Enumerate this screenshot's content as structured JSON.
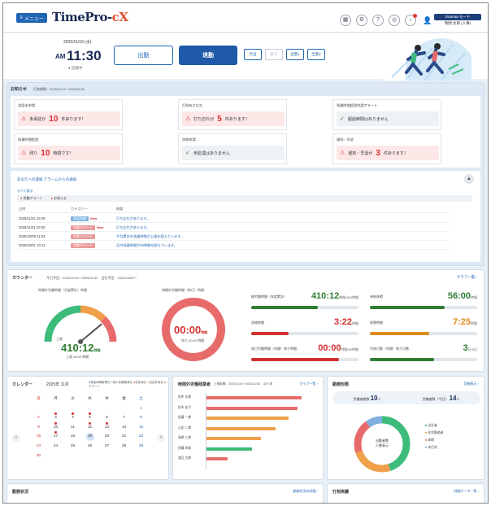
{
  "colors": {
    "primary": "#1e5aa8",
    "alert": "#d32f2f",
    "success": "#2e7d32",
    "orange": "#f0a04b",
    "green_bar": "#3dbb7a"
  },
  "header": {
    "menu_label": "メニュー",
    "logo_main": "TimePro-",
    "logo_accent": "cX",
    "icons": [
      "calendar-icon",
      "settings-icon",
      "help-icon",
      "globe-icon",
      "bell-icon"
    ],
    "user_mode": "Dramaa モード",
    "user_name": "時間 太郎 (人事)"
  },
  "clock": {
    "date": "2025/11/19 (水)",
    "ampm": "AM",
    "time": "11:30",
    "record": "記録中",
    "clock_in": "出勤",
    "clock_out": "退勤",
    "small_buttons": [
      {
        "label": "外出",
        "enabled": true
      },
      {
        "label": "戻り",
        "enabled": false
      },
      {
        "label": "出張1",
        "enabled": true
      },
      {
        "label": "出張2",
        "enabled": true
      }
    ]
  },
  "notices": {
    "title": "お知らせ",
    "period": "打刻期間：2025/11/11〜2025/11/20",
    "cards": [
      {
        "label": "承認未申請",
        "prefix": "未承認が",
        "count": "10",
        "suffix": "件あります！",
        "alert": true
      },
      {
        "label": "打刻ぬけ忘れ",
        "prefix": "打ち忘れが",
        "count": "5",
        "suffix": "件あります！",
        "alert": true
      },
      {
        "label": "残業時間超過申請アラート",
        "prefix": "",
        "count": "",
        "suffix": "超過時間はありません",
        "alert": false
      },
      {
        "label": "残業時間超過",
        "prefix": "残り",
        "count": "10",
        "suffix": "時間です！",
        "alert": true
      },
      {
        "label": "休暇申請",
        "prefix": "",
        "count": "",
        "suffix": "未処理はありません",
        "alert": false
      },
      {
        "label": "遅刻・早退",
        "prefix": "遅刻・早退が",
        "count": "3",
        "suffix": "件あります！",
        "alert": true
      }
    ],
    "sub_title": "あなたへの連絡 アラームからの通知",
    "sub_filter": "すべて表示",
    "chips": [
      "労働アラート",
      "お知らせ"
    ],
    "columns": [
      "日時",
      "カテゴリー",
      "概要"
    ],
    "rows": [
      {
        "date": "2025/11/01 10:20",
        "category": "承認依頼",
        "color": "blue",
        "new": true,
        "summary": "打ち忘れがあります。"
      },
      {
        "date": "2025/11/01 10:00",
        "category": "労務アラート",
        "color": "red",
        "new": true,
        "summary": "打ち忘れがあります。"
      },
      {
        "date": "2025/10/09 11:03",
        "category": "労務アラート",
        "color": "red",
        "new": false,
        "summary": "今月累計の残業時間が上限を超えています。"
      },
      {
        "date": "2025/10/01 10:13",
        "category": "労務アラート",
        "color": "red",
        "new": false,
        "summary": "月の残業時間が45時間を超えています。"
      }
    ]
  },
  "counter": {
    "title": "カウンター",
    "subtitle": "今日予定：2025/11/01〜2025/11/30　会社予定：2025/10/26〜",
    "link": "グラフ一覧 ›",
    "gauge": {
      "title": "時間外労働時間（月度累計）時間",
      "value": "410:12",
      "unit": "時間",
      "caption": "上限 45:00 時間",
      "fraction": 0.78
    },
    "ring": {
      "title": "時間外労働時間（休日）時間",
      "value": "00:00",
      "unit": "時間",
      "caption": "残り 60:00 時間",
      "fraction": 1.0
    },
    "metrics": [
      {
        "label": "総労働時間（年度累計）",
        "value": "410:12",
        "unit": "時間/360時間",
        "color": "#2e7d32",
        "fill": 0.62
      },
      {
        "label": "有給休暇",
        "value": "56:00",
        "unit": "時間",
        "color": "#2e7d32",
        "fill": 0.7
      },
      {
        "label": "深夜時間",
        "value": "3:22",
        "unit": "時間",
        "color": "#d32f2f",
        "fill": 0.35
      },
      {
        "label": "振替時間",
        "value": "7:25",
        "unit": "時間",
        "color": "#e08a1e",
        "fill": 0.55
      },
      {
        "label": "休日労働時間（年間）残り時間",
        "value": "00:00",
        "unit": "時間/80時間",
        "color": "#d32f2f",
        "fill": 0.82
      },
      {
        "label": "代休日数（年間）残り日数",
        "value": "3",
        "unit": "日/5日",
        "color": "#2e7d32",
        "fill": 0.6
      }
    ]
  },
  "calendar": {
    "title": "カレンダー",
    "month": "2025年 11月",
    "legend": [
      "有給休暇取得日",
      "他人休暇取得日",
      "法定休日",
      "法定外休日",
      "アラート"
    ],
    "weekdays": [
      "日",
      "月",
      "火",
      "水",
      "木",
      "金",
      "土"
    ],
    "weeks": [
      [
        "",
        "",
        "",
        "",
        "",
        "",
        "1"
      ],
      [
        "2",
        "3",
        "4",
        "5",
        "6",
        "7",
        "8"
      ],
      [
        "9",
        "10",
        "11",
        "12",
        "13",
        "14",
        "15"
      ],
      [
        "16",
        "17",
        "18",
        "19",
        "20",
        "21",
        "22"
      ],
      [
        "23",
        "24",
        "25",
        "26",
        "27",
        "28",
        "29"
      ],
      [
        "30",
        "",
        "",
        "",
        "",
        "",
        ""
      ]
    ],
    "today": "19",
    "dots": [
      "3",
      "4",
      "5",
      "10",
      "12",
      "13",
      "17"
    ]
  },
  "overtime_chart": {
    "title": "時間外労働残業者",
    "period": "上限時間：2025/11/01〜2025/11/30　ほか 表",
    "link": "グラフ一覧 ›",
    "chart_data": {
      "type": "bar",
      "categories": [
        "田中 太郎",
        "鈴木 花子",
        "佐藤 一郎",
        "山田 二郎",
        "高橋 三郎",
        "伊藤 四郎",
        "渡辺 五郎"
      ],
      "values": [
        52,
        50,
        45,
        38,
        30,
        25,
        12
      ],
      "colors": [
        "#e86b6b",
        "#e86b6b",
        "#f0a04b",
        "#f0a04b",
        "#f0a04b",
        "#3dbb7a",
        "#e86b6b"
      ],
      "ylim": [
        0,
        60
      ]
    }
  },
  "pie": {
    "title": "勤務形態",
    "link": "詳細表示 ›",
    "stat1_label": "労働者総数",
    "stat1_value": "10",
    "stat1_unit": "人",
    "stat2_label": "労働者数（今日）",
    "stat2_value": "14",
    "stat2_unit": "人",
    "center": "出勤者数",
    "center2": "人数表示",
    "chart_data": {
      "type": "pie",
      "labels": [
        "出勤",
        "テレワーク",
        "休暇",
        "未打刻"
      ],
      "values": [
        45,
        25,
        20,
        10
      ],
      "colors": [
        "#3dbb7a",
        "#f0a04b",
        "#e86b6b",
        "#7fb0e0"
      ]
    },
    "legend_lines": [
      "出社者",
      "在宅勤務者",
      "休暇",
      "未打刻"
    ]
  },
  "bottom": {
    "left_title": "勤務状況",
    "left_link": "勤務状況の詳細 ›",
    "right_title": "打刻実績",
    "right_link": "詳細データ一覧 ›"
  }
}
